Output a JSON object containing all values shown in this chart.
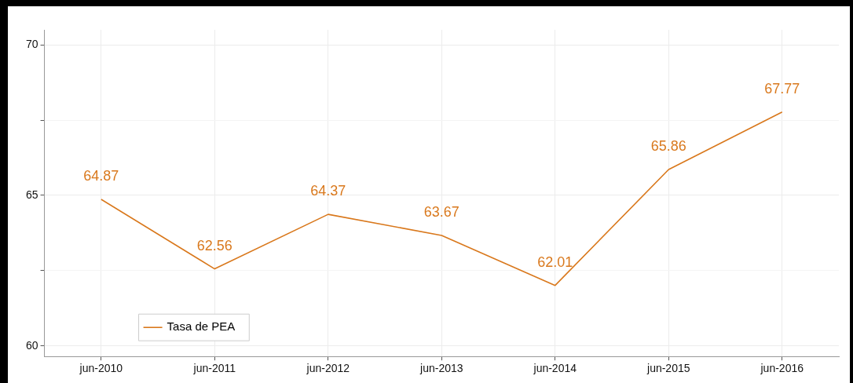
{
  "chart_data": {
    "type": "line",
    "categories": [
      "jun-2010",
      "jun-2011",
      "jun-2012",
      "jun-2013",
      "jun-2014",
      "jun-2015",
      "jun-2016"
    ],
    "series": [
      {
        "name": "Tasa de PEA",
        "color": "#d9781c",
        "values": [
          64.87,
          62.56,
          64.37,
          63.67,
          62.01,
          65.86,
          67.77
        ]
      }
    ],
    "ylim": [
      59.65,
      70.5
    ],
    "yticks": [
      60,
      {
        "value": 62.5,
        "label": null
      },
      65,
      {
        "value": 67.5,
        "label": null
      },
      70
    ],
    "grid": true,
    "legend": "bottom left",
    "data_labels": true,
    "marker": "none",
    "line_style": "solid"
  }
}
